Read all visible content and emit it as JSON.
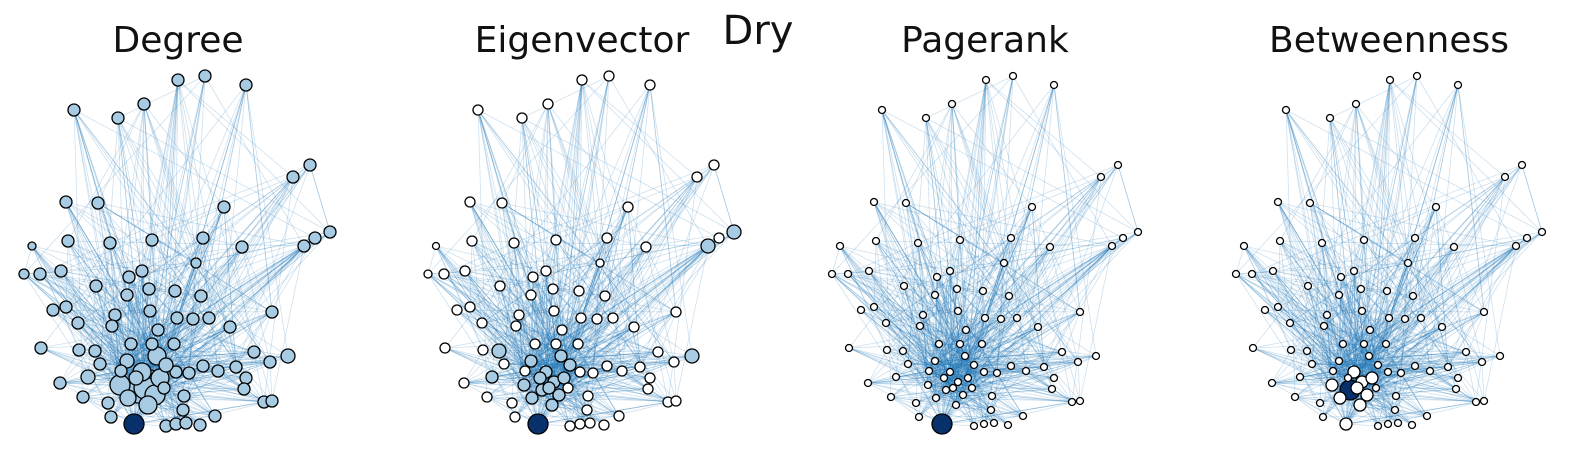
{
  "figure": {
    "title": "Dry",
    "edge_color": "#1f77b4",
    "node_outline": "#000000",
    "panels": [
      {
        "title": "Degree",
        "highlight_node": 0,
        "low_color": "#deebf7",
        "mid_color": "#a6cbe3",
        "high_color": "#08306b"
      },
      {
        "title": "Eigenvector",
        "highlight_node": 0,
        "low_color": "#ffffff",
        "mid_color": "#a6cbe3",
        "high_color": "#08306b"
      },
      {
        "title": "Pagerank",
        "highlight_node": 0,
        "low_color": "#ffffff",
        "mid_color": "#c6dbef",
        "high_color": "#08306b"
      },
      {
        "title": "Betweenness",
        "highlight_node": 1,
        "low_color": "#ffffff",
        "mid_color": "#c6dbef",
        "high_color": "#08306b"
      }
    ]
  }
}
